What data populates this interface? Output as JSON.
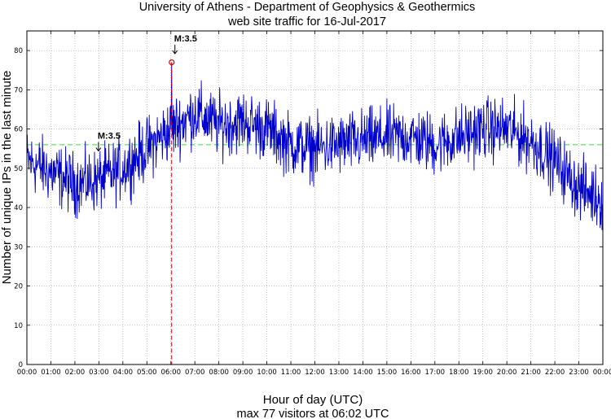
{
  "chart_data": {
    "type": "line",
    "title": "University of Athens - Department of Geophysics & Geothermics",
    "subtitle": "web site traffic for 16-Jul-2017",
    "xlabel": "Hour of day (UTC)",
    "ylabel": "Number of unique IPs in the last minute",
    "footer": "max 77 visitors at 06:02 UTC",
    "xlim": [
      0,
      24
    ],
    "ylim": [
      0,
      85
    ],
    "x_tick_labels": [
      "00:00",
      "01:00",
      "02:00",
      "03:00",
      "04:00",
      "05:00",
      "06:00",
      "07:00",
      "08:00",
      "09:00",
      "10:00",
      "11:00",
      "12:00",
      "13:00",
      "14:00",
      "15:00",
      "16:00",
      "17:00",
      "18:00",
      "19:00",
      "20:00",
      "21:00",
      "22:00",
      "23:00",
      "00:00"
    ],
    "y_ticks": [
      0,
      10,
      20,
      30,
      40,
      50,
      60,
      70,
      80
    ],
    "grid": true,
    "mean_line": {
      "value": 56,
      "color": "#33dd33"
    },
    "series": [
      {
        "name": "visitors",
        "color": "#0000cc",
        "hourly_trend": [
          52,
          49,
          46,
          47,
          50,
          55,
          60,
          64,
          61,
          62,
          60,
          56,
          55,
          56,
          57,
          58,
          58,
          56,
          58,
          60,
          60,
          57,
          52,
          45,
          42
        ],
        "noise_amplitude": 6,
        "samples_per_hour": 60
      }
    ],
    "max_point": {
      "hour": 6.0333,
      "value": 77,
      "label": "M:3.5",
      "marker_color": "#cc0000",
      "vline_color": "#cc0000"
    },
    "annotations": [
      {
        "label": "M:3.5",
        "hour": 2.95,
        "value": 60
      }
    ]
  }
}
